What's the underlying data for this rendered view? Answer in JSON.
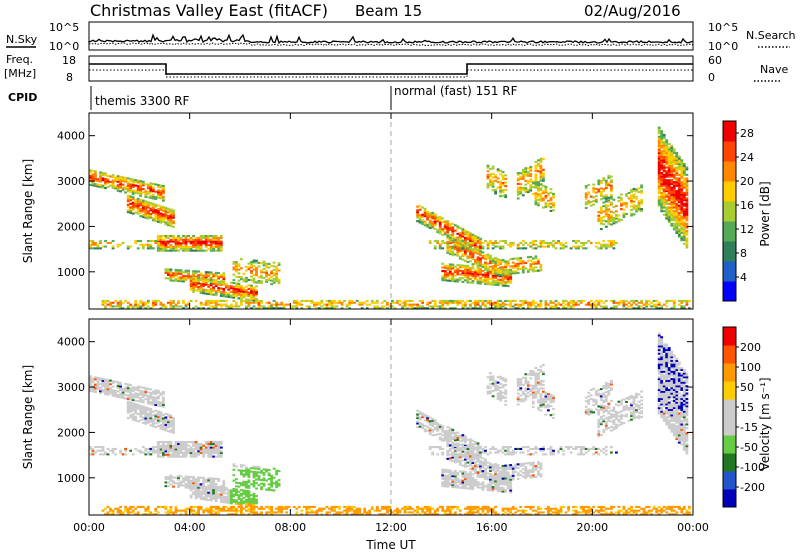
{
  "header": {
    "station": "Christmas Valley East (fitACF)",
    "beam": "Beam 15",
    "date": "02/Aug/2016"
  },
  "top_panels": {
    "nsky_label": "N.Sky",
    "nsearch_label": "N.Search",
    "noise_ticks": [
      "10^5",
      "10^0"
    ],
    "freq_label_1": "Freq.",
    "freq_label_2": "[MHz]",
    "freq_ticks": [
      "18",
      "8"
    ],
    "nave_label": "Nave",
    "nave_ticks": [
      "60",
      "0"
    ],
    "cpid_label": "CPID",
    "cpid_1": "themis 3300 RF",
    "cpid_2": "normal (fast) 151 RF"
  },
  "colors": {
    "power": [
      "#0000ff",
      "#1f5fc8",
      "#2f7f5a",
      "#55aa55",
      "#aacc33",
      "#ffcc00",
      "#ff8800",
      "#ff4400",
      "#ee0000"
    ],
    "velocity": [
      "#0000bb",
      "#2255cc",
      "#227722",
      "#66cc44",
      "#cccccc",
      "#cccccc",
      "#ffcc00",
      "#ff9900",
      "#ff5500",
      "#ee0000"
    ]
  },
  "chart_data": [
    {
      "type": "heatmap",
      "name": "power",
      "xlabel": "",
      "ylabel": "Slant Range [km]",
      "x_ticks": [
        "00:00",
        "04:00",
        "08:00",
        "12:00",
        "16:00",
        "20:00",
        "00:00"
      ],
      "y_ticks": [
        "4000",
        "3000",
        "2000",
        "1000"
      ],
      "xlim": [
        0,
        24
      ],
      "ylim": [
        180,
        4500
      ],
      "colorbar_label": "Power [dB]",
      "colorbar_ticks": [
        "28",
        "24",
        "20",
        "16",
        "12",
        "8",
        "4"
      ],
      "colorbar_range": [
        0,
        30
      ],
      "grid": false,
      "marker_time": 12
    },
    {
      "type": "heatmap",
      "name": "velocity",
      "xlabel": "Time UT",
      "ylabel": "Slant Range [km]",
      "x_ticks": [
        "00:00",
        "04:00",
        "08:00",
        "12:00",
        "16:00",
        "20:00",
        "00:00"
      ],
      "y_ticks": [
        "4000",
        "3000",
        "2000",
        "1000"
      ],
      "xlim": [
        0,
        24
      ],
      "ylim": [
        180,
        4500
      ],
      "colorbar_label": "Velocity [m s⁻¹]",
      "colorbar_ticks": [
        "200",
        "100",
        "50",
        "15",
        "-15",
        "-50",
        "-100",
        "-200"
      ],
      "colorbar_range": [
        -250,
        250
      ],
      "grid": false,
      "marker_time": 12
    }
  ]
}
